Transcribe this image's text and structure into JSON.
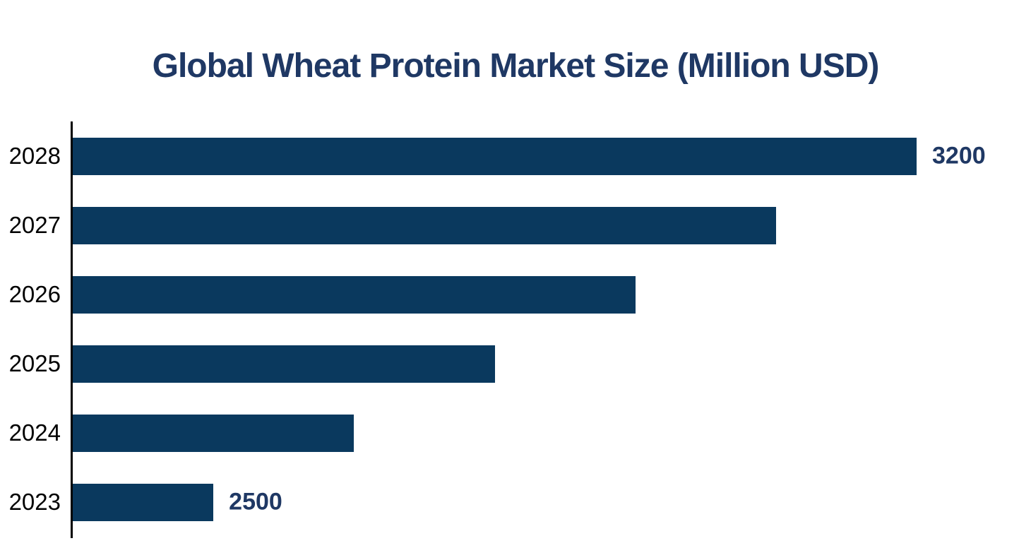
{
  "chart_data": {
    "type": "bar",
    "orientation": "horizontal",
    "title": "Global Wheat Protein Market Size (Million USD)",
    "categories": [
      "2028",
      "2027",
      "2026",
      "2025",
      "2024",
      "2023"
    ],
    "values": [
      3200,
      3060,
      2920,
      2780,
      2640,
      2500
    ],
    "data_labels": [
      "3200",
      null,
      null,
      null,
      null,
      "2500"
    ],
    "value_axis": {
      "min": 2360,
      "max": 3200
    },
    "xlabel": "",
    "ylabel": "",
    "grid": false,
    "legend": false,
    "colors": {
      "bar": "#0a395e",
      "title_text": "#1f3864",
      "value_label_text": "#1f3864",
      "category_label_text": "#000000",
      "axis_line": "#000000",
      "background": "#ffffff"
    }
  }
}
